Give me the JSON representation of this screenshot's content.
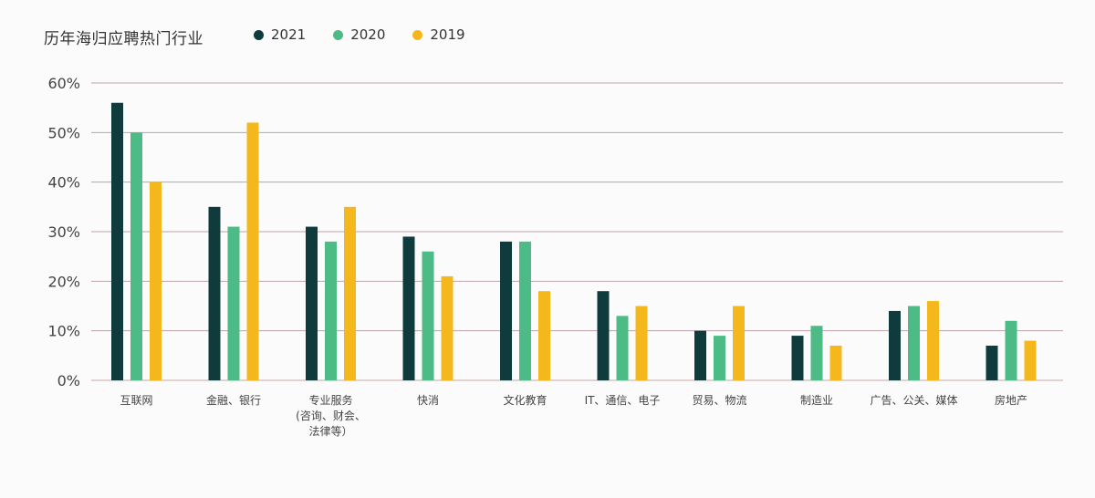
{
  "chart_data": {
    "type": "bar",
    "title": "历年海归应聘热门行业",
    "categories": [
      [
        "互联网"
      ],
      [
        "金融、银行"
      ],
      [
        "专业服务",
        "(咨询、财会、",
        "法律等）"
      ],
      [
        "快消"
      ],
      [
        "文化教育"
      ],
      [
        "IT、通信、电子"
      ],
      [
        "贸易、物流"
      ],
      [
        "制造业"
      ],
      [
        "广告、公关、媒体"
      ],
      [
        "房地产"
      ]
    ],
    "series": [
      {
        "name": "2021",
        "color": "#0f3b3c",
        "values": [
          56,
          35,
          31,
          29,
          28,
          18,
          10,
          9,
          14,
          7
        ]
      },
      {
        "name": "2020",
        "color": "#4dbb86",
        "values": [
          50,
          31,
          28,
          26,
          28,
          13,
          9,
          11,
          15,
          12
        ]
      },
      {
        "name": "2019",
        "color": "#f5b81c",
        "values": [
          40,
          52,
          35,
          21,
          18,
          15,
          15,
          7,
          16,
          8
        ]
      }
    ],
    "ylim": [
      0,
      60
    ],
    "yticks": [
      "0%",
      "10%",
      "20%",
      "30%",
      "40%",
      "50%",
      "60%"
    ],
    "grid": true,
    "legend": "top"
  }
}
